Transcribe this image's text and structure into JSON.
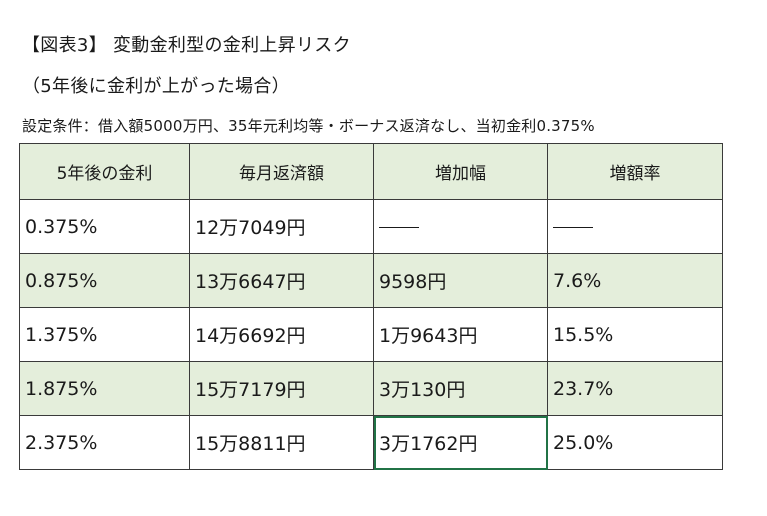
{
  "figure": {
    "title": "【図表3】 変動金利型の金利上昇リスク",
    "subtitle": "（5年後に金利が上がった場合）",
    "condition": "設定条件：借入額5000万円、35年元利均等・ボーナス返済なし、当初金利0.375%"
  },
  "table": {
    "headers": [
      "5年後の金利",
      "毎月返済額",
      "増加幅",
      "増額率"
    ],
    "rows": [
      {
        "rate": "0.375%",
        "payment": "12万7049円",
        "increase": "",
        "ratio": ""
      },
      {
        "rate": "0.875%",
        "payment": "13万6647円",
        "increase": "9598円",
        "ratio": "7.6%"
      },
      {
        "rate": "1.375%",
        "payment": "14万6692円",
        "increase": "1万9643円",
        "ratio": "15.5%"
      },
      {
        "rate": "1.875%",
        "payment": "15万7179円",
        "increase": "3万130円",
        "ratio": "23.7%"
      },
      {
        "rate": "2.375%",
        "payment": "15万8811円",
        "increase": "3万1762円",
        "ratio": "25.0%"
      }
    ],
    "colors": {
      "header_fill": "#e4eedb",
      "band_fill": "#e4eedb",
      "selection_border": "#217346"
    }
  }
}
